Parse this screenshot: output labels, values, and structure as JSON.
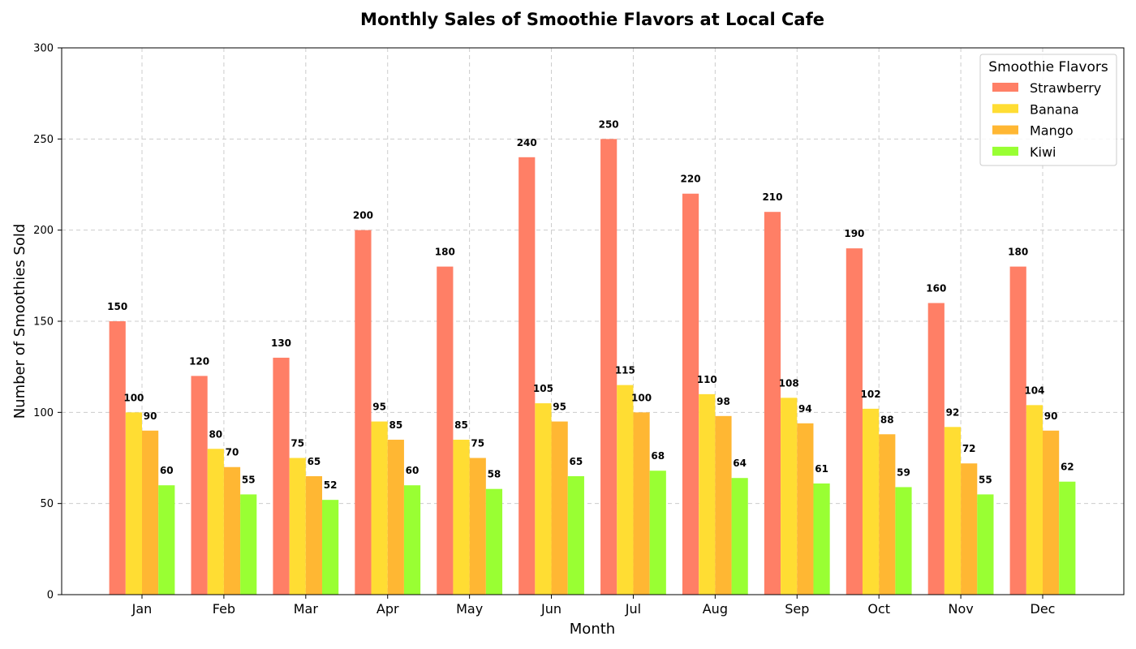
{
  "chart_data": {
    "type": "bar",
    "title": "Monthly Sales of Smoothie Flavors at Local Cafe",
    "xlabel": "Month",
    "ylabel": "Number of Smoothies Sold",
    "ylim": [
      0,
      300
    ],
    "yticks": [
      0,
      50,
      100,
      150,
      200,
      250,
      300
    ],
    "categories": [
      "Jan",
      "Feb",
      "Mar",
      "Apr",
      "May",
      "Jun",
      "Jul",
      "Aug",
      "Sep",
      "Oct",
      "Nov",
      "Dec"
    ],
    "grid": true,
    "legend": {
      "title": "Smoothie Flavors",
      "placement": "top-right"
    },
    "series": [
      {
        "name": "Strawberry",
        "color": "#FF7F66",
        "values": [
          150,
          120,
          130,
          200,
          180,
          240,
          250,
          220,
          210,
          190,
          160,
          180
        ]
      },
      {
        "name": "Banana",
        "color": "#FFDD33",
        "values": [
          100,
          80,
          75,
          95,
          85,
          105,
          115,
          110,
          108,
          102,
          92,
          104
        ]
      },
      {
        "name": "Mango",
        "color": "#FFB733",
        "values": [
          90,
          70,
          65,
          85,
          75,
          95,
          100,
          98,
          94,
          88,
          72,
          90
        ]
      },
      {
        "name": "Kiwi",
        "color": "#99FF33",
        "values": [
          60,
          55,
          52,
          60,
          58,
          65,
          68,
          64,
          61,
          59,
          55,
          62
        ]
      }
    ]
  }
}
